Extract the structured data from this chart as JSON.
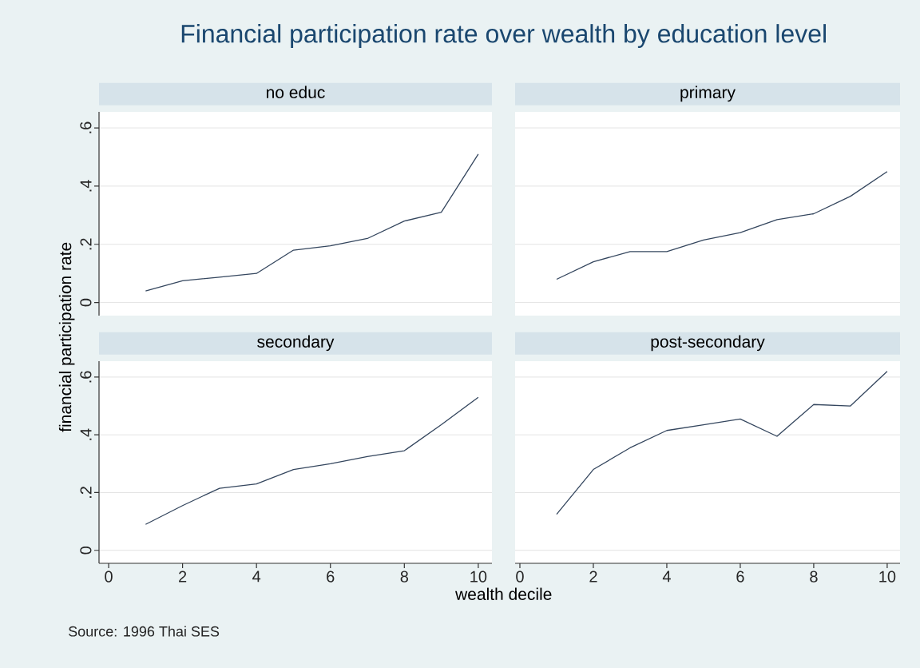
{
  "chart_data": [
    {
      "type": "line",
      "title": "no educ",
      "ylabel": "financial participation rate",
      "annotations": [
        "Financial participation rate over wealth by education level"
      ],
      "x": [
        1,
        2,
        3,
        4,
        5,
        6,
        7,
        8,
        9,
        10
      ],
      "values": [
        0.04,
        0.075,
        0.087,
        0.1,
        0.18,
        0.195,
        0.22,
        0.28,
        0.31,
        0.51
      ],
      "color": "#34465e",
      "xlim": [
        -0.26,
        10.37
      ],
      "ylim": [
        -0.045,
        0.655
      ],
      "yticks": [
        0,
        {
          "value": 0.2,
          "label": ".2"
        },
        {
          "value": 0.4,
          "label": ".4"
        },
        {
          "value": 0.6,
          "label": ".6"
        }
      ],
      "grid": "y",
      "tick_labels": "y"
    },
    {
      "type": "line",
      "title": "primary",
      "x": [
        1,
        2,
        3,
        4,
        5,
        6,
        7,
        8,
        9,
        10
      ],
      "values": [
        0.08,
        0.14,
        0.175,
        0.175,
        0.215,
        0.24,
        0.285,
        0.305,
        0.365,
        0.45
      ],
      "color": "#34465e",
      "xlim": [
        -0.13,
        10.35
      ],
      "ylim": [
        -0.045,
        0.655
      ],
      "yticks": [
        {
          "value": 0,
          "label": null
        },
        {
          "value": 0.2,
          "label": null
        },
        {
          "value": 0.4,
          "label": null
        },
        {
          "value": 0.6,
          "label": null
        }
      ],
      "grid": "y",
      "tick_labels": false
    },
    {
      "type": "line",
      "title": "secondary",
      "xlabel": "wealth decile",
      "annotations": [
        "Source: 1996 Thai SES"
      ],
      "x": [
        1,
        2,
        3,
        4,
        5,
        6,
        7,
        8,
        9,
        10
      ],
      "values": [
        0.09,
        0.155,
        0.215,
        0.23,
        0.28,
        0.3,
        0.325,
        0.345,
        0.435,
        0.53
      ],
      "color": "#34465e",
      "xlim": [
        -0.26,
        10.37
      ],
      "ylim": [
        -0.045,
        0.655
      ],
      "xticks": [
        0,
        2,
        4,
        6,
        8,
        10
      ],
      "yticks": [
        0,
        {
          "value": 0.2,
          "label": ".2"
        },
        {
          "value": 0.4,
          "label": ".4"
        },
        {
          "value": 0.6,
          "label": ".6"
        }
      ],
      "grid": "y"
    },
    {
      "type": "line",
      "title": "post-secondary",
      "x": [
        1,
        2,
        3,
        4,
        5,
        6,
        7,
        8,
        9,
        10
      ],
      "values": [
        0.125,
        0.28,
        0.355,
        0.415,
        0.435,
        0.455,
        0.395,
        0.505,
        0.5,
        0.62
      ],
      "color": "#34465e",
      "xlim": [
        -0.13,
        10.35
      ],
      "ylim": [
        -0.045,
        0.655
      ],
      "xticks": [
        0,
        2,
        4,
        6,
        8,
        10
      ],
      "yticks": [
        {
          "value": 0,
          "label": null
        },
        {
          "value": 0.2,
          "label": null
        },
        {
          "value": 0.4,
          "label": null
        },
        {
          "value": 0.6,
          "label": null
        }
      ],
      "grid": "y",
      "tick_labels": "x"
    }
  ]
}
